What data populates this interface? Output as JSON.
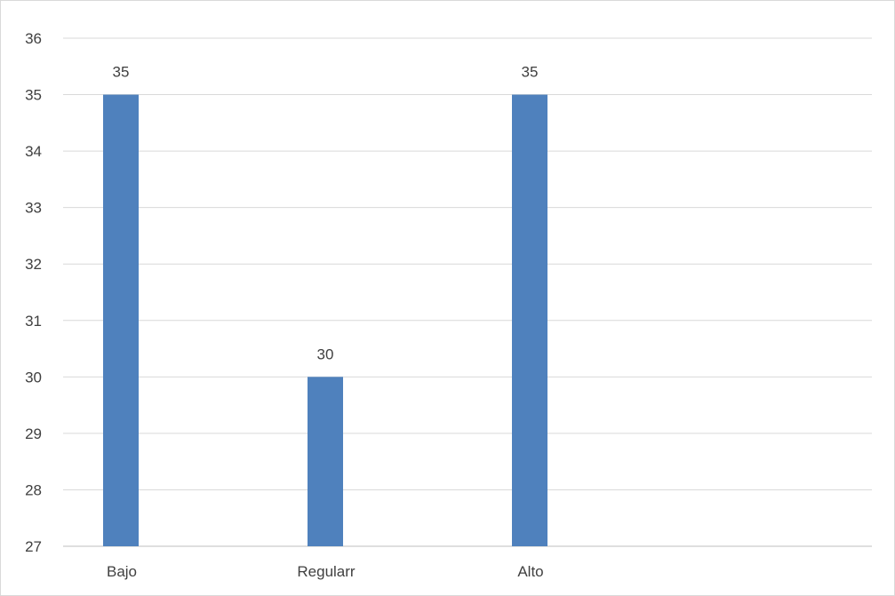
{
  "chart_data": {
    "type": "bar",
    "categories": [
      "Bajo",
      "Regularr",
      "Alto"
    ],
    "series": [
      {
        "values": [
          35,
          30,
          35
        ],
        "color": "#4f81bd"
      }
    ],
    "data_labels": [
      "35",
      "30",
      "35"
    ],
    "ylim": [
      27,
      36
    ],
    "yticks": [
      "27",
      "28",
      "29",
      "30",
      "31",
      "32",
      "33",
      "34",
      "35",
      "36"
    ],
    "grid": true,
    "legend": "none",
    "title": "",
    "xlabel": "",
    "ylabel": ""
  }
}
